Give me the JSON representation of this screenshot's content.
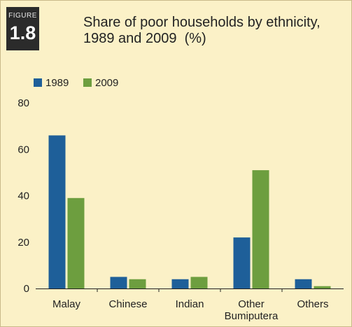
{
  "figure": {
    "word": "FIGURE",
    "number": "1.8"
  },
  "title": {
    "line1": "Share of poor households by ethnicity,",
    "line2": "1989 and 2009",
    "unit": "(%)"
  },
  "colors": {
    "panel_bg": "#fbf1c7",
    "badge_bg": "#2b2b2b",
    "series_1989": "#1e5f99",
    "series_2009": "#6d9e3f"
  },
  "chart_data": {
    "type": "bar",
    "title": "Share of poor households by ethnicity, 1989 and 2009 (%)",
    "categories": [
      "Malay",
      "Chinese",
      "Indian",
      "Other Bumiputera",
      "Others"
    ],
    "category_label_lines": [
      [
        "Malay"
      ],
      [
        "Chinese"
      ],
      [
        "Indian"
      ],
      [
        "Other",
        "Bumiputera"
      ],
      [
        "Others"
      ]
    ],
    "series": [
      {
        "name": "1989",
        "values": [
          66,
          5,
          4,
          22,
          4
        ]
      },
      {
        "name": "2009",
        "values": [
          39,
          4,
          5,
          51,
          1
        ]
      }
    ],
    "ylim": [
      0,
      80
    ],
    "yticks": [
      0,
      20,
      40,
      60,
      80
    ],
    "xlabel": "",
    "ylabel": "",
    "grid": false,
    "legend_position": "top-left"
  }
}
